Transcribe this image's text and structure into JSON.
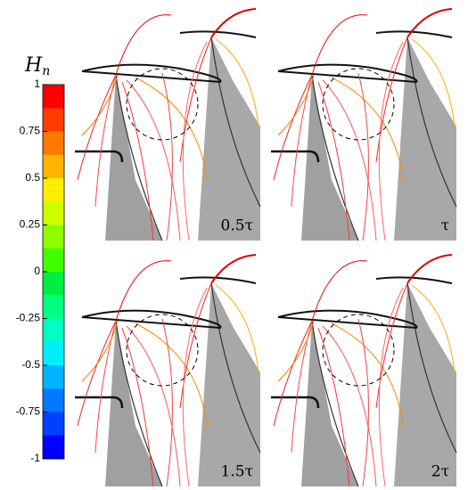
{
  "colorbar": {
    "symbol": "H",
    "subscript": "n",
    "ticks": [
      1,
      0.75,
      0.5,
      0.25,
      0,
      -0.25,
      -0.5,
      -0.75,
      -1
    ],
    "colors": [
      "#ff0000",
      "#ff3c00",
      "#ff7800",
      "#ffb400",
      "#ffee00",
      "#ccff00",
      "#8cff00",
      "#40ff00",
      "#00ee40",
      "#00ff80",
      "#00ffc0",
      "#00eeff",
      "#00b4ff",
      "#0078ff",
      "#0040ff",
      "#0000ff"
    ]
  },
  "panels": [
    {
      "label": "0.5τ"
    },
    {
      "label": "τ"
    },
    {
      "label": "1.5τ"
    },
    {
      "label": "2τ"
    }
  ]
}
